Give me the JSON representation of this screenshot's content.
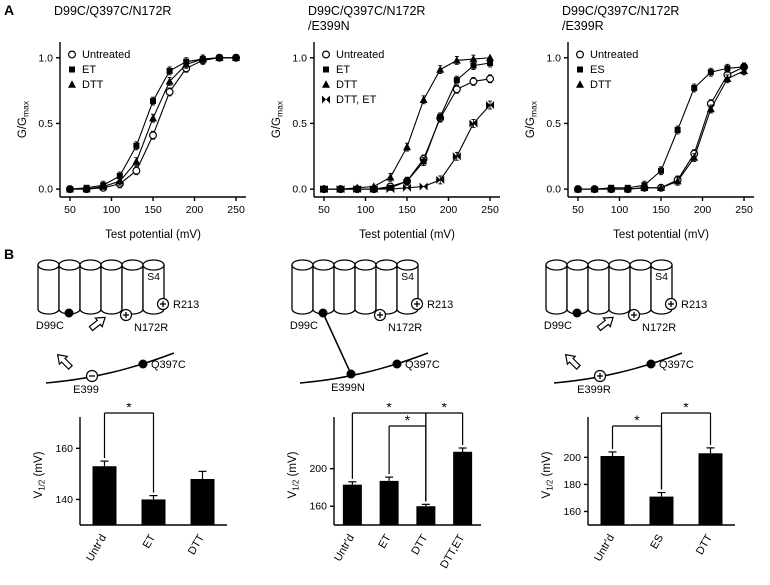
{
  "panels": {
    "a_label": "A",
    "b_label": "B"
  },
  "titles": [
    {
      "line1": "D99C/Q397C/N172R",
      "line2": ""
    },
    {
      "line1": "D99C/Q397C/N172R",
      "line2": "/E399N"
    },
    {
      "line1": "D99C/Q397C/N172R",
      "line2": "/E399R"
    }
  ],
  "chart_data": [
    {
      "type": "line",
      "panel": "A-left",
      "title": "D99C/Q397C/N172R",
      "xlabel": "Test potential (mV)",
      "ylabel": "G/Gmax",
      "ylabel_parts": {
        "main": "G/G",
        "sub": "max",
        "rest": ""
      },
      "xlim": [
        38,
        262
      ],
      "ylim": [
        -0.06,
        1.12
      ],
      "xticks": [
        50,
        100,
        150,
        200,
        250
      ],
      "yticks": [
        0,
        0.5,
        1
      ],
      "x": [
        50,
        70,
        90,
        110,
        130,
        150,
        170,
        190,
        210,
        230,
        250
      ],
      "err": 0.03,
      "legend_position": "upper-left",
      "series": [
        {
          "name": "Untreated",
          "marker": "open-circle",
          "v_half_mV": 153,
          "y": [
            0,
            0,
            0.01,
            0.04,
            0.14,
            0.41,
            0.74,
            0.92,
            0.98,
            1.0,
            1.0
          ]
        },
        {
          "name": "ET",
          "marker": "filled-square",
          "v_half_mV": 140,
          "y": [
            0,
            0.01,
            0.03,
            0.1,
            0.33,
            0.67,
            0.9,
            0.97,
            0.99,
            1.0,
            1.0
          ]
        },
        {
          "name": "DTT",
          "marker": "filled-triangle",
          "v_half_mV": 148,
          "y": [
            0,
            0,
            0.02,
            0.06,
            0.21,
            0.54,
            0.82,
            0.95,
            0.99,
            1.0,
            1.0
          ]
        }
      ]
    },
    {
      "type": "line",
      "panel": "A-middle",
      "title": "D99C/Q397C/N172R /E399N",
      "xlabel": "Test potential (mV)",
      "ylabel": "G/Gmax",
      "ylabel_parts": {
        "main": "G/G",
        "sub": "max",
        "rest": ""
      },
      "xlim": [
        38,
        262
      ],
      "ylim": [
        -0.06,
        1.12
      ],
      "xticks": [
        50,
        100,
        150,
        200,
        250
      ],
      "yticks": [
        0,
        0.5,
        1
      ],
      "x": [
        50,
        70,
        90,
        110,
        130,
        150,
        170,
        190,
        210,
        230,
        250
      ],
      "err": 0.03,
      "legend_position": "upper-left",
      "series": [
        {
          "name": "Untreated",
          "marker": "open-circle",
          "v_half_mV": 183,
          "y": [
            0,
            0,
            0,
            0,
            0.02,
            0.06,
            0.23,
            0.54,
            0.76,
            0.82,
            0.84
          ]
        },
        {
          "name": "ET",
          "marker": "filled-square",
          "v_half_mV": 187,
          "y": [
            0,
            0,
            0,
            0,
            0.01,
            0.06,
            0.21,
            0.55,
            0.83,
            0.94,
            0.96
          ]
        },
        {
          "name": "DTT",
          "marker": "filled-triangle",
          "v_half_mV": 160,
          "y": [
            0,
            0,
            0.01,
            0.02,
            0.09,
            0.32,
            0.68,
            0.91,
            0.98,
            0.99,
            1.0
          ]
        },
        {
          "name": "DTT, ET",
          "marker": "bowtie",
          "v_half_mV": 218,
          "y": [
            0,
            0,
            0,
            0,
            0,
            0.01,
            0.02,
            0.07,
            0.25,
            0.5,
            0.64
          ]
        }
      ]
    },
    {
      "type": "line",
      "panel": "A-right",
      "title": "D99C/Q397C/N172R /E399R",
      "xlabel": "Test potential (mV)",
      "ylabel": "G/Gmax",
      "ylabel_parts": {
        "main": "G/G",
        "sub": "max",
        "rest": ""
      },
      "xlim": [
        38,
        262
      ],
      "ylim": [
        -0.06,
        1.12
      ],
      "xticks": [
        50,
        100,
        150,
        200,
        250
      ],
      "yticks": [
        0,
        0.5,
        1
      ],
      "x": [
        50,
        70,
        90,
        110,
        130,
        150,
        170,
        190,
        210,
        230,
        250
      ],
      "err": 0.03,
      "legend_position": "upper-left",
      "series": [
        {
          "name": "Untreated",
          "marker": "open-circle",
          "v_half_mV": 201,
          "y": [
            0,
            0,
            0,
            0,
            0.01,
            0.01,
            0.07,
            0.27,
            0.65,
            0.87,
            0.93
          ]
        },
        {
          "name": "ES",
          "marker": "filled-square",
          "v_half_mV": 171,
          "y": [
            0,
            0,
            0.01,
            0.01,
            0.03,
            0.14,
            0.45,
            0.77,
            0.89,
            0.92,
            0.93
          ]
        },
        {
          "name": "DTT",
          "marker": "filled-triangle",
          "v_half_mV": 203,
          "y": [
            0,
            0,
            0,
            0,
            0.01,
            0.01,
            0.06,
            0.24,
            0.61,
            0.84,
            0.9
          ]
        }
      ]
    },
    {
      "type": "bar",
      "panel": "B-left",
      "ylabel": "V1/2 (mV)",
      "ylabel_parts": {
        "main": "V",
        "sub": "1/2",
        "rest": " (mV)"
      },
      "categories": [
        "Untr'd",
        "ET",
        "DTT"
      ],
      "values": [
        153,
        140,
        148
      ],
      "errors": [
        2,
        1.5,
        3
      ],
      "ylim": [
        130,
        166
      ],
      "yticks": [
        140,
        160
      ],
      "brackets": [
        {
          "from": 0,
          "to": 1,
          "label": "*",
          "level": 0
        }
      ]
    },
    {
      "type": "bar",
      "panel": "B-middle",
      "ylabel": "V1/2 (mV)",
      "ylabel_parts": {
        "main": "V",
        "sub": "1/2",
        "rest": " (mV)"
      },
      "categories": [
        "Untr'd",
        "ET",
        "DTT",
        "DTT,ET"
      ],
      "values": [
        183,
        187,
        160,
        218
      ],
      "errors": [
        3,
        4,
        2,
        4
      ],
      "ylim": [
        140,
        238
      ],
      "yticks": [
        160,
        200
      ],
      "brackets": [
        {
          "from": 0,
          "to": 2,
          "label": "*",
          "level": 0
        },
        {
          "from": 1,
          "to": 2,
          "label": "*",
          "level": 1
        },
        {
          "from": 2,
          "to": 3,
          "label": "*",
          "level": 0
        }
      ]
    },
    {
      "type": "bar",
      "panel": "B-right",
      "ylabel": "V1/2 (mV)",
      "ylabel_parts": {
        "main": "V",
        "sub": "1/2",
        "rest": " (mV)"
      },
      "categories": [
        "Untr'd",
        "ES",
        "DTT"
      ],
      "values": [
        201,
        171,
        203
      ],
      "errors": [
        3,
        3,
        4
      ],
      "ylim": [
        150,
        218
      ],
      "yticks": [
        160,
        180,
        200
      ],
      "brackets": [
        {
          "from": 0,
          "to": 1,
          "label": "*",
          "level": 1
        },
        {
          "from": 1,
          "to": 2,
          "label": "*",
          "level": 0
        }
      ]
    }
  ],
  "schematics": [
    {
      "labels": {
        "s4": "S4",
        "r213": "R213",
        "d99c": "D99C",
        "n172r": "N172R",
        "q397c": "Q397C",
        "e399": "E399"
      },
      "e399_sign": "minus",
      "interaction": "arrows"
    },
    {
      "labels": {
        "s4": "S4",
        "r213": "R213",
        "d99c": "D99C",
        "n172r": "N172R",
        "q397c": "Q397C",
        "e399": "E399N"
      },
      "e399_sign": "none",
      "interaction": "bond"
    },
    {
      "labels": {
        "s4": "S4",
        "r213": "R213",
        "d99c": "D99C",
        "n172r": "N172R",
        "q397c": "Q397C",
        "e399": "E399R"
      },
      "e399_sign": "plus",
      "interaction": "arrows"
    }
  ],
  "colors": {
    "foreground": "#000000",
    "background": "#ffffff"
  }
}
